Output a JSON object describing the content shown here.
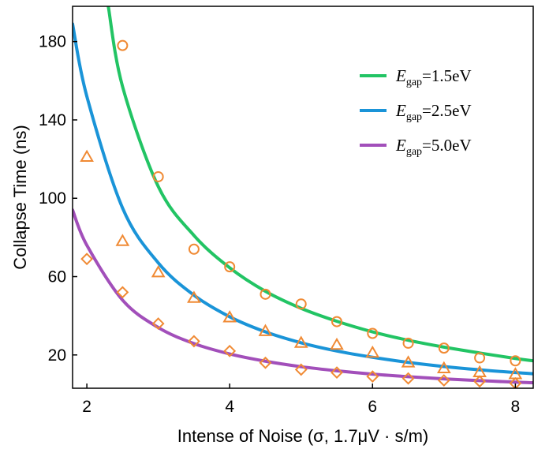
{
  "chart_data": {
    "type": "line",
    "xlabel": "Intense of Noise (σ, 1.7μV · s/m)",
    "ylabel": "Collapse Time (ns)",
    "xlim": [
      1.8,
      8.25
    ],
    "ylim": [
      3,
      198
    ],
    "xticks": [
      "2",
      "4",
      "6",
      "8"
    ],
    "yticks": [
      "20",
      "60",
      "100",
      "140",
      "180"
    ],
    "grid": false,
    "legend_position": "top-right",
    "series": [
      {
        "name": "E_gap=1.5eV",
        "legend": {
          "symbol": "E",
          "subscript": "gap",
          "value": "=1.5eV"
        },
        "kind": "fit",
        "color": "#22c464",
        "x": [
          2.3,
          2.5,
          3.0,
          3.5,
          4.0,
          4.5,
          5.0,
          5.5,
          6.0,
          6.5,
          7.0,
          7.5,
          8.0,
          8.25
        ],
        "values": [
          198,
          157,
          106,
          81,
          64.5,
          52.5,
          43.8,
          37.2,
          31.8,
          27.5,
          24.0,
          21.0,
          18.2,
          17.0
        ]
      },
      {
        "name": "E_gap=2.5eV",
        "legend": {
          "symbol": "E",
          "subscript": "gap",
          "value": "=2.5eV"
        },
        "kind": "fit",
        "color": "#1a94d8",
        "x": [
          1.8,
          2.0,
          2.5,
          3.0,
          3.5,
          4.0,
          4.5,
          5.0,
          5.5,
          6.0,
          6.5,
          7.0,
          7.5,
          8.0,
          8.25
        ],
        "values": [
          189,
          152,
          95,
          67,
          50.5,
          39.5,
          31.8,
          26.2,
          22.0,
          18.8,
          16.2,
          14.1,
          12.4,
          11.0,
          10.4
        ]
      },
      {
        "name": "E_gap=5.0eV",
        "legend": {
          "symbol": "E",
          "subscript": "gap",
          "value": "=5.0eV"
        },
        "kind": "fit",
        "color": "#a24fba",
        "x": [
          1.8,
          2.0,
          2.5,
          3.0,
          3.5,
          4.0,
          4.5,
          5.0,
          5.5,
          6.0,
          6.5,
          7.0,
          7.5,
          8.0,
          8.25
        ],
        "values": [
          94,
          76,
          48,
          34,
          25.8,
          20.5,
          16.8,
          14.0,
          11.9,
          10.2,
          8.9,
          7.8,
          6.9,
          6.1,
          5.8
        ]
      },
      {
        "kind": "points",
        "marker": "circle",
        "color": "#f08a34",
        "x": [
          2.5,
          3.0,
          3.5,
          4.0,
          4.5,
          5.0,
          5.5,
          6.0,
          6.5,
          7.0,
          7.5,
          8.0
        ],
        "values": [
          178,
          111,
          74,
          65,
          51,
          46,
          37,
          31,
          26,
          23.5,
          18.5,
          17
        ]
      },
      {
        "kind": "points",
        "marker": "triangle",
        "color": "#f08a34",
        "x": [
          2.0,
          2.5,
          3.0,
          3.5,
          4.0,
          4.5,
          5.0,
          5.5,
          6.0,
          6.5,
          7.0,
          7.5,
          8.0
        ],
        "values": [
          121,
          78,
          62,
          49,
          39,
          32,
          26,
          25,
          21,
          16,
          13,
          11,
          10
        ]
      },
      {
        "kind": "points",
        "marker": "diamond",
        "color": "#f08a34",
        "x": [
          2.0,
          2.5,
          3.0,
          3.5,
          4.0,
          4.5,
          5.0,
          5.5,
          6.0,
          6.5,
          7.0,
          7.5,
          8.0
        ],
        "values": [
          69,
          52,
          36,
          27,
          22,
          16,
          12.5,
          11,
          9,
          8,
          7,
          6.5,
          5.5
        ]
      }
    ]
  }
}
